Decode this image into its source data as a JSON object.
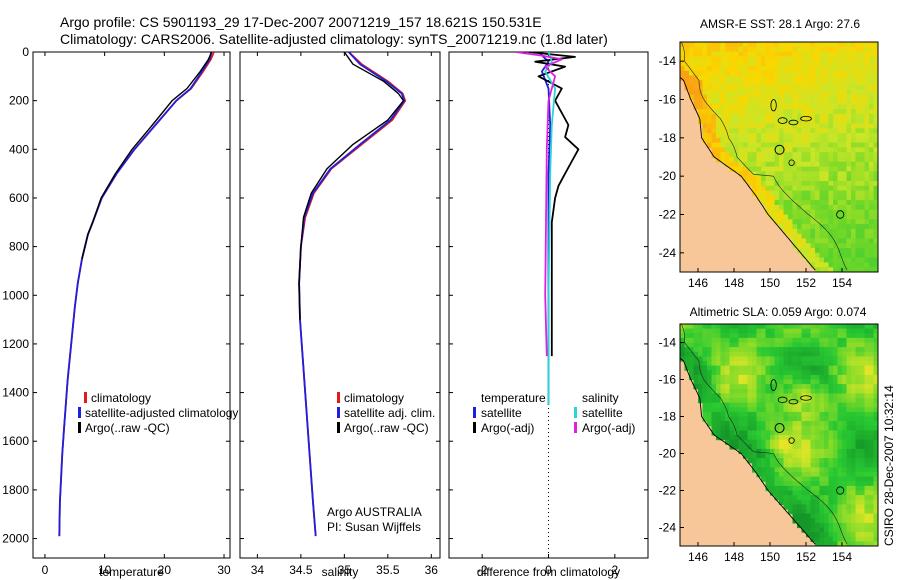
{
  "header": {
    "line1": "Argo profile: CS 5901193_29 17-Dec-2007 20071219_157 18.621S 150.531E",
    "line2": "Climatology: CARS2006. Satellite-adjusted climatology: synTS_20071219.nc (1.8d later)"
  },
  "attribution": {
    "text1": "Argo AUSTRALIA",
    "text2": "PI: Susan Wijffels"
  },
  "footer": {
    "timestamp": "CSIRO 28-Dec-2007 10:32:14"
  },
  "colors": {
    "climatology": "#e31a1c",
    "satellite": "#1f1fe0",
    "argo": "#000000",
    "diff_satellite_temp": "#1f1fe0",
    "diff_satellite_sal": "#29d6d6",
    "diff_argo_sal": "#e020e0",
    "land": "#f7c79a"
  },
  "chart_data": [
    {
      "id": "temperature",
      "type": "line",
      "xlabel": "temperature",
      "ylabel": "",
      "xlim": [
        -2,
        31
      ],
      "ylim": [
        2080,
        0
      ],
      "xticks": [
        0,
        10,
        20,
        30
      ],
      "yticks": [
        0,
        200,
        400,
        600,
        800,
        1000,
        1200,
        1400,
        1600,
        1800,
        2000
      ],
      "legend": [
        "climatology",
        "satellite-adjusted climatology",
        "Argo(..raw -QC)"
      ],
      "legend_position": "lower-middle",
      "series": [
        {
          "name": "climatology",
          "color": "#e31a1c",
          "x": [
            28.3,
            27.8,
            26.5,
            24.5,
            22.0,
            18.5,
            15.0,
            12.0,
            9.5,
            8.0,
            7.2,
            6.2,
            5.5,
            5.0,
            4.6,
            4.2,
            3.8,
            3.5,
            3.2,
            2.9,
            2.7,
            2.5,
            2.4
          ],
          "y": [
            0,
            30,
            80,
            150,
            200,
            300,
            400,
            500,
            600,
            700,
            750,
            850,
            950,
            1050,
            1150,
            1250,
            1350,
            1450,
            1550,
            1650,
            1750,
            1850,
            1990
          ]
        },
        {
          "name": "satellite-adjusted climatology",
          "color": "#1f1fe0",
          "x": [
            27.9,
            27.6,
            26.3,
            24.4,
            22.0,
            18.5,
            15.0,
            12.0,
            9.5,
            8.0,
            7.2,
            6.2,
            5.5,
            5.0,
            4.6,
            4.2,
            3.8,
            3.5,
            3.2,
            2.9,
            2.7,
            2.5,
            2.4
          ],
          "y": [
            0,
            30,
            80,
            150,
            200,
            300,
            400,
            500,
            600,
            700,
            750,
            850,
            950,
            1050,
            1150,
            1250,
            1350,
            1450,
            1550,
            1650,
            1750,
            1850,
            1990
          ]
        },
        {
          "name": "Argo(..raw -QC)",
          "color": "#000000",
          "x": [
            27.9,
            27.4,
            26.0,
            23.8,
            21.3,
            18.0,
            14.6,
            11.8,
            9.4,
            8.0,
            7.2,
            6.2
          ],
          "y": [
            0,
            30,
            80,
            150,
            200,
            300,
            400,
            500,
            600,
            700,
            750,
            850
          ]
        }
      ]
    },
    {
      "id": "salinity",
      "type": "line",
      "xlabel": "salinity",
      "ylabel": "",
      "xlim": [
        33.8,
        36.1
      ],
      "ylim": [
        2080,
        0
      ],
      "xticks": [
        34,
        34.5,
        35,
        35.5,
        36
      ],
      "legend": [
        "climatology",
        "satellite adj. clim.",
        "Argo(..raw -QC)"
      ],
      "legend_position": "lower-middle",
      "series": [
        {
          "name": "climatology",
          "color": "#e31a1c",
          "x": [
            35.05,
            35.2,
            35.5,
            35.67,
            35.7,
            35.55,
            35.2,
            34.85,
            34.65,
            34.55,
            34.5,
            34.48,
            34.49,
            34.52,
            34.55,
            34.58,
            34.61,
            34.64,
            34.67
          ],
          "y": [
            0,
            50,
            120,
            170,
            200,
            280,
            380,
            480,
            580,
            680,
            800,
            950,
            1100,
            1250,
            1400,
            1550,
            1700,
            1850,
            1990
          ]
        },
        {
          "name": "satellite adj. clim.",
          "color": "#1f1fe0",
          "x": [
            35.05,
            35.18,
            35.48,
            35.66,
            35.69,
            35.53,
            35.18,
            34.84,
            34.64,
            34.54,
            34.5,
            34.48,
            34.49,
            34.52,
            34.55,
            34.58,
            34.61,
            34.64,
            34.67
          ],
          "y": [
            0,
            50,
            120,
            170,
            200,
            280,
            380,
            480,
            580,
            680,
            800,
            950,
            1100,
            1250,
            1400,
            1550,
            1700,
            1850,
            1990
          ]
        },
        {
          "name": "Argo(..raw -QC)",
          "color": "#000000",
          "x": [
            35.0,
            35.1,
            35.45,
            35.62,
            35.68,
            35.5,
            35.1,
            34.8,
            34.62,
            34.53,
            34.5,
            34.48,
            34.49
          ],
          "y": [
            0,
            50,
            120,
            170,
            200,
            280,
            380,
            480,
            580,
            680,
            800,
            950,
            1100
          ]
        }
      ]
    },
    {
      "id": "difference",
      "type": "line",
      "xlabel": "difference from climatology",
      "ylabel": "",
      "xlim": [
        -3,
        3
      ],
      "ylim": [
        2080,
        0
      ],
      "xticks": [
        -2,
        0,
        2
      ],
      "legend_left_title": "temperature",
      "legend_right_title": "salinity",
      "legend": [
        "satellite",
        "Argo(-adj)",
        "satellite",
        "Argo(-adj)"
      ],
      "legend_position": "lower",
      "series": [
        {
          "name": "temperature satellite",
          "color": "#1f1fe0",
          "x": [
            -0.3,
            0.0,
            -0.2,
            0.0,
            0.05,
            0.0,
            0.0
          ],
          "y": [
            0,
            40,
            80,
            150,
            300,
            500,
            1450
          ]
        },
        {
          "name": "temperature Argo(-adj)",
          "color": "#000000",
          "x": [
            -0.6,
            0.8,
            -0.4,
            0.5,
            -0.3,
            0.4,
            0.2,
            0.6,
            0.5,
            0.9,
            0.7,
            0.5,
            0.3,
            0.2,
            0.1,
            0.1,
            0.1
          ],
          "y": [
            0,
            20,
            40,
            60,
            100,
            150,
            200,
            300,
            350,
            400,
            450,
            500,
            550,
            600,
            700,
            1000,
            1250
          ]
        },
        {
          "name": "salinity satellite",
          "color": "#29d6d6",
          "x": [
            0.0,
            0.1,
            -0.1,
            0.2,
            0.1,
            0.05,
            0.0,
            0.0
          ],
          "y": [
            0,
            40,
            80,
            150,
            300,
            500,
            1000,
            1450
          ]
        },
        {
          "name": "salinity Argo(-adj)",
          "color": "#e020e0",
          "x": [
            -1.0,
            -0.2,
            0.4,
            -0.1,
            0.2,
            0.0,
            -0.05,
            -0.1,
            -0.05
          ],
          "y": [
            0,
            15,
            30,
            60,
            100,
            200,
            400,
            1000,
            1250
          ]
        }
      ]
    },
    {
      "id": "sst_map",
      "type": "heatmap",
      "title": "AMSR-E SST: 28.1 Argo: 27.6",
      "xlim": [
        145,
        156
      ],
      "ylim": [
        -25,
        -13
      ],
      "xticks": [
        146,
        148,
        150,
        152,
        154
      ],
      "yticks": [
        -14,
        -16,
        -18,
        -20,
        -22,
        -24
      ],
      "argo_location": [
        150.531,
        -18.621
      ]
    },
    {
      "id": "sla_map",
      "type": "heatmap",
      "title": "Altimetric SLA: 0.059 Argo: 0.074",
      "xlim": [
        145,
        156
      ],
      "ylim": [
        -25,
        -13
      ],
      "xticks": [
        146,
        148,
        150,
        152,
        154
      ],
      "yticks": [
        -14,
        -16,
        -18,
        -20,
        -22,
        -24
      ],
      "argo_location": [
        150.531,
        -18.621
      ]
    }
  ]
}
